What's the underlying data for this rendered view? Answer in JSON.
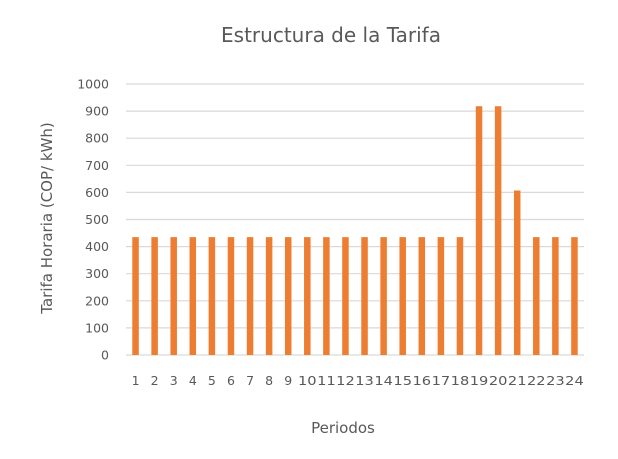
{
  "chart_data": {
    "type": "bar",
    "title": "Estructura de la Tarifa",
    "xlabel": "Periodos",
    "ylabel": "Tarifa Horaria (COP/ kWh)",
    "ylim": [
      0,
      1000
    ],
    "ytick_step": 100,
    "yticks": [
      "0",
      "100",
      "200",
      "300",
      "400",
      "500",
      "600",
      "700",
      "800",
      "900",
      "1000"
    ],
    "categories": [
      "1",
      "2",
      "3",
      "4",
      "5",
      "6",
      "7",
      "8",
      "9",
      "10",
      "11",
      "12",
      "13",
      "14",
      "15",
      "16",
      "17",
      "18",
      "19",
      "20",
      "21",
      "22",
      "23",
      "24"
    ],
    "values": [
      435,
      435,
      435,
      435,
      435,
      435,
      435,
      435,
      435,
      435,
      435,
      435,
      435,
      435,
      435,
      435,
      435,
      435,
      918,
      918,
      607,
      435,
      435,
      435
    ],
    "grid": true,
    "legend": "none",
    "bar_color": "#ED7D31",
    "grid_color": "#D9D9D9"
  }
}
